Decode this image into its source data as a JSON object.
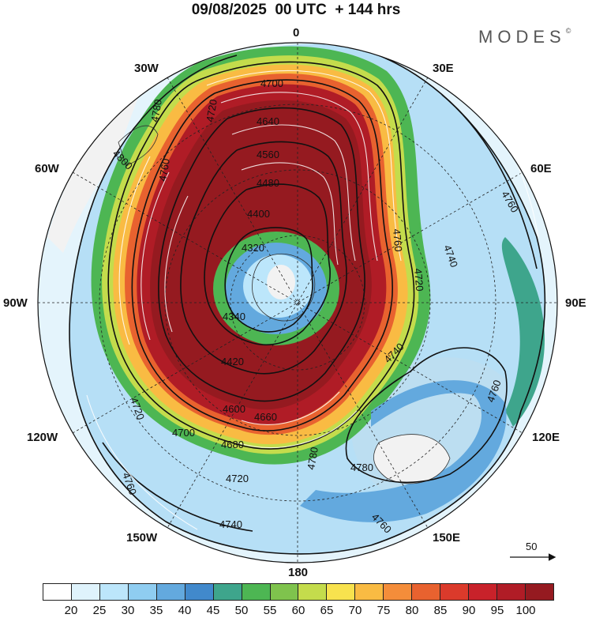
{
  "title": "09/08/2025  00 UTC  + 144 hrs",
  "brand": "MODES",
  "brand_mark": "©",
  "longitude_labels": {
    "lon_0": "0",
    "lon_30e": "30E",
    "lon_60e": "60E",
    "lon_90e": "90E",
    "lon_120e": "120E",
    "lon_150e": "150E",
    "lon_180": "180",
    "lon_150w": "150W",
    "lon_120w": "120W",
    "lon_90w": "90W",
    "lon_60w": "60W",
    "lon_30w": "30W"
  },
  "contour_labels": [
    "4700",
    "4640",
    "4560",
    "4480",
    "4400",
    "4320",
    "4340",
    "4420",
    "4600",
    "4660",
    "4680",
    "4700",
    "4720",
    "4740",
    "4760",
    "4780",
    "4780",
    "4760",
    "4800",
    "4780",
    "4760",
    "4720",
    "4740",
    "4720",
    "4760",
    "4740",
    "4760",
    "4720",
    "4760"
  ],
  "reference_vector": {
    "label": "50"
  },
  "colorbar": {
    "colors": [
      "#ffffff",
      "#dff3fc",
      "#bce6fb",
      "#8fcdf1",
      "#63a9de",
      "#4189cc",
      "#3ea58c",
      "#4db653",
      "#7fc34d",
      "#c4dc4c",
      "#f8e24e",
      "#f9bb43",
      "#f48d3a",
      "#e8622f",
      "#db3a2b",
      "#c8222a",
      "#b01c26",
      "#951a20"
    ],
    "ticks": [
      "20",
      "25",
      "30",
      "35",
      "40",
      "45",
      "50",
      "55",
      "60",
      "65",
      "70",
      "75",
      "80",
      "85",
      "90",
      "95",
      "100"
    ]
  }
}
